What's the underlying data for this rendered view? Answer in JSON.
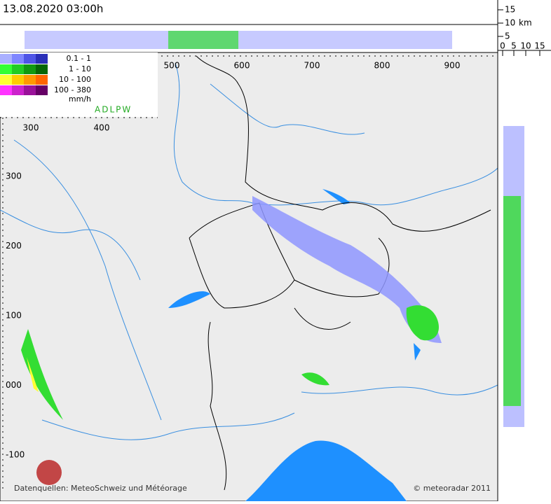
{
  "header": {
    "timestamp": "13.08.2020 03:00h"
  },
  "profile_top": {
    "height_labels": [
      "15",
      "10",
      "5"
    ],
    "unit": "km"
  },
  "profile_side": {
    "x_labels": [
      "0",
      "5",
      "10",
      "15"
    ]
  },
  "legend": {
    "entries": [
      {
        "range": "0.1 -    1",
        "colors": [
          "#aab0ff",
          "#7f86ff",
          "#4f55e6",
          "#2a2fb8"
        ]
      },
      {
        "range": "1 -   10",
        "colors": [
          "#33ff33",
          "#22cc22",
          "#119911",
          "#066606"
        ]
      },
      {
        "range": "10 - 100",
        "colors": [
          "#ffff33",
          "#ffcc00",
          "#ff9900",
          "#ff6600"
        ]
      },
      {
        "range": "100 - 380",
        "colors": [
          "#ff33ff",
          "#cc22cc",
          "#991199",
          "#660066"
        ]
      }
    ],
    "unit": "mm/h",
    "stations": "ADLPW"
  },
  "map": {
    "x_labels_top": [
      "500",
      "600",
      "700",
      "800",
      "900"
    ],
    "x_labels_inner": [
      "300",
      "400"
    ],
    "y_labels": [
      "300",
      "200",
      "100",
      "000",
      "-100"
    ]
  },
  "footer": {
    "sources": "Datenquellen: MeteoSchweiz und Météorage",
    "copyright": "© meteoradar 2011"
  }
}
